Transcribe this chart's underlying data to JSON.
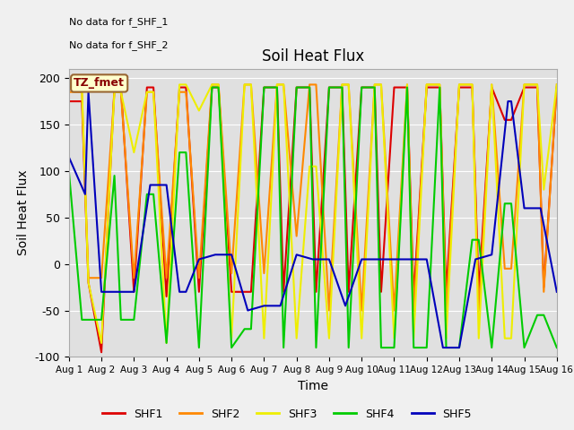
{
  "title": "Soil Heat Flux",
  "xlabel": "Time",
  "ylabel": "Soil Heat Flux",
  "ylim": [
    -100,
    210
  ],
  "xlim": [
    0,
    15
  ],
  "fig_bg": "#f0f0f0",
  "plot_bg": "#e0e0e0",
  "text_annotations": [
    "No data for f_SHF_1",
    "No data for f_SHF_2"
  ],
  "box_label": "TZ_fmet",
  "series": {
    "SHF1": {
      "color": "#dd0000",
      "lw": 1.5
    },
    "SHF2": {
      "color": "#ff8800",
      "lw": 1.5
    },
    "SHF3": {
      "color": "#eeee00",
      "lw": 1.5
    },
    "SHF4": {
      "color": "#00cc00",
      "lw": 1.5
    },
    "SHF5": {
      "color": "#0000bb",
      "lw": 1.5
    }
  },
  "xtick_labels": [
    "Aug 1",
    "Aug 2",
    "Aug 3",
    "Aug 4",
    "Aug 5",
    "Aug 6",
    "Aug 7",
    "Aug 8",
    "Aug 9",
    "Aug 10",
    "Aug 11",
    "Aug 12",
    "Aug 13",
    "Aug 14",
    "Aug 15",
    "Aug 16"
  ],
  "ytick_labels": [
    -100,
    -50,
    0,
    50,
    100,
    150,
    200
  ],
  "SHF1_x": [
    0,
    0.4,
    0.6,
    1.0,
    1.4,
    1.6,
    2.0,
    2.4,
    2.6,
    3.0,
    3.4,
    3.6,
    4.0,
    4.4,
    4.6,
    5.0,
    5.4,
    5.6,
    6.0,
    6.4,
    6.6,
    7.0,
    7.4,
    7.6,
    8.0,
    8.4,
    8.6,
    9.0,
    9.4,
    9.6,
    10.0,
    10.4,
    10.6,
    11.0,
    11.4,
    11.6,
    12.0,
    12.4,
    12.6,
    13.0,
    13.4,
    13.6,
    14.0,
    14.4,
    14.6,
    15.0
  ],
  "SHF1_y": [
    175,
    175,
    -20,
    -95,
    190,
    190,
    -30,
    190,
    190,
    -35,
    190,
    190,
    -30,
    190,
    190,
    -30,
    -30,
    -30,
    190,
    190,
    -30,
    190,
    190,
    -30,
    190,
    190,
    -30,
    190,
    190,
    -30,
    190,
    190,
    -35,
    190,
    190,
    -30,
    190,
    190,
    -30,
    190,
    155,
    155,
    190,
    190,
    -25,
    190
  ],
  "SHF2_x": [
    0,
    0.4,
    0.6,
    1.0,
    1.4,
    1.6,
    2.0,
    2.4,
    2.6,
    3.0,
    3.4,
    3.6,
    4.0,
    4.4,
    4.6,
    5.0,
    5.4,
    5.6,
    6.0,
    6.4,
    6.6,
    7.0,
    7.4,
    7.6,
    8.0,
    8.4,
    8.6,
    9.0,
    9.4,
    9.6,
    10.0,
    10.4,
    10.6,
    11.0,
    11.4,
    11.6,
    12.0,
    12.4,
    12.6,
    13.0,
    13.4,
    13.6,
    14.0,
    14.4,
    14.6,
    15.0
  ],
  "SHF2_y": [
    185,
    185,
    -15,
    -15,
    185,
    185,
    -15,
    185,
    185,
    -15,
    185,
    185,
    -15,
    193,
    193,
    -10,
    193,
    193,
    -10,
    193,
    193,
    30,
    193,
    193,
    -50,
    193,
    193,
    -50,
    193,
    193,
    -50,
    193,
    -50,
    193,
    193,
    -50,
    193,
    193,
    -50,
    193,
    -5,
    -5,
    193,
    193,
    -30,
    193
  ],
  "SHF3_x": [
    0,
    0.4,
    0.6,
    1.0,
    1.4,
    1.6,
    2.0,
    2.4,
    2.6,
    3.0,
    3.4,
    3.6,
    4.0,
    4.4,
    4.6,
    5.0,
    5.4,
    5.6,
    6.0,
    6.4,
    6.6,
    7.0,
    7.4,
    7.6,
    8.0,
    8.4,
    8.6,
    9.0,
    9.4,
    9.6,
    10.0,
    10.4,
    10.6,
    11.0,
    11.4,
    11.6,
    12.0,
    12.4,
    12.6,
    13.0,
    13.4,
    13.6,
    14.0,
    14.4,
    14.6,
    15.0
  ],
  "SHF3_y": [
    190,
    190,
    -20,
    -85,
    185,
    185,
    120,
    185,
    185,
    -85,
    193,
    193,
    165,
    193,
    193,
    -80,
    193,
    193,
    -80,
    193,
    193,
    -80,
    105,
    105,
    -80,
    193,
    193,
    -80,
    193,
    193,
    -80,
    193,
    -80,
    193,
    193,
    -80,
    193,
    193,
    -80,
    193,
    -80,
    -80,
    193,
    193,
    80,
    193
  ],
  "SHF4_x": [
    0,
    0.4,
    0.6,
    1.0,
    1.4,
    1.6,
    2.0,
    2.4,
    2.6,
    3.0,
    3.4,
    3.6,
    4.0,
    4.4,
    4.6,
    5.0,
    5.4,
    5.6,
    6.0,
    6.4,
    6.6,
    7.0,
    7.4,
    7.6,
    8.0,
    8.4,
    8.6,
    9.0,
    9.4,
    9.6,
    10.0,
    10.4,
    10.6,
    11.0,
    11.4,
    11.6,
    12.0,
    12.4,
    12.6,
    13.0,
    13.4,
    13.6,
    14.0,
    14.4,
    14.6,
    15.0
  ],
  "SHF4_y": [
    100,
    -60,
    -60,
    -60,
    95,
    -60,
    -60,
    75,
    75,
    -85,
    120,
    120,
    -90,
    190,
    190,
    -90,
    -70,
    -70,
    190,
    190,
    -90,
    190,
    190,
    -90,
    190,
    190,
    -90,
    190,
    190,
    -90,
    -90,
    190,
    -90,
    -90,
    190,
    -90,
    -90,
    26,
    26,
    -90,
    65,
    65,
    -90,
    -55,
    -55,
    -90
  ],
  "SHF5_x": [
    0,
    0.5,
    0.6,
    1.0,
    1.5,
    2.0,
    2.5,
    3.0,
    3.4,
    3.6,
    4.0,
    4.5,
    5.0,
    5.5,
    6.0,
    6.5,
    7.0,
    7.5,
    8.0,
    8.5,
    9.0,
    9.5,
    10.0,
    10.5,
    11.0,
    11.5,
    12.0,
    12.5,
    13.0,
    13.5,
    13.6,
    14.0,
    14.5,
    15.0
  ],
  "SHF5_y": [
    115,
    75,
    185,
    -30,
    -30,
    -30,
    85,
    85,
    -30,
    -30,
    5,
    10,
    10,
    -50,
    -45,
    -45,
    10,
    5,
    5,
    -45,
    5,
    5,
    5,
    5,
    5,
    -90,
    -90,
    5,
    10,
    175,
    175,
    60,
    60,
    -30
  ]
}
